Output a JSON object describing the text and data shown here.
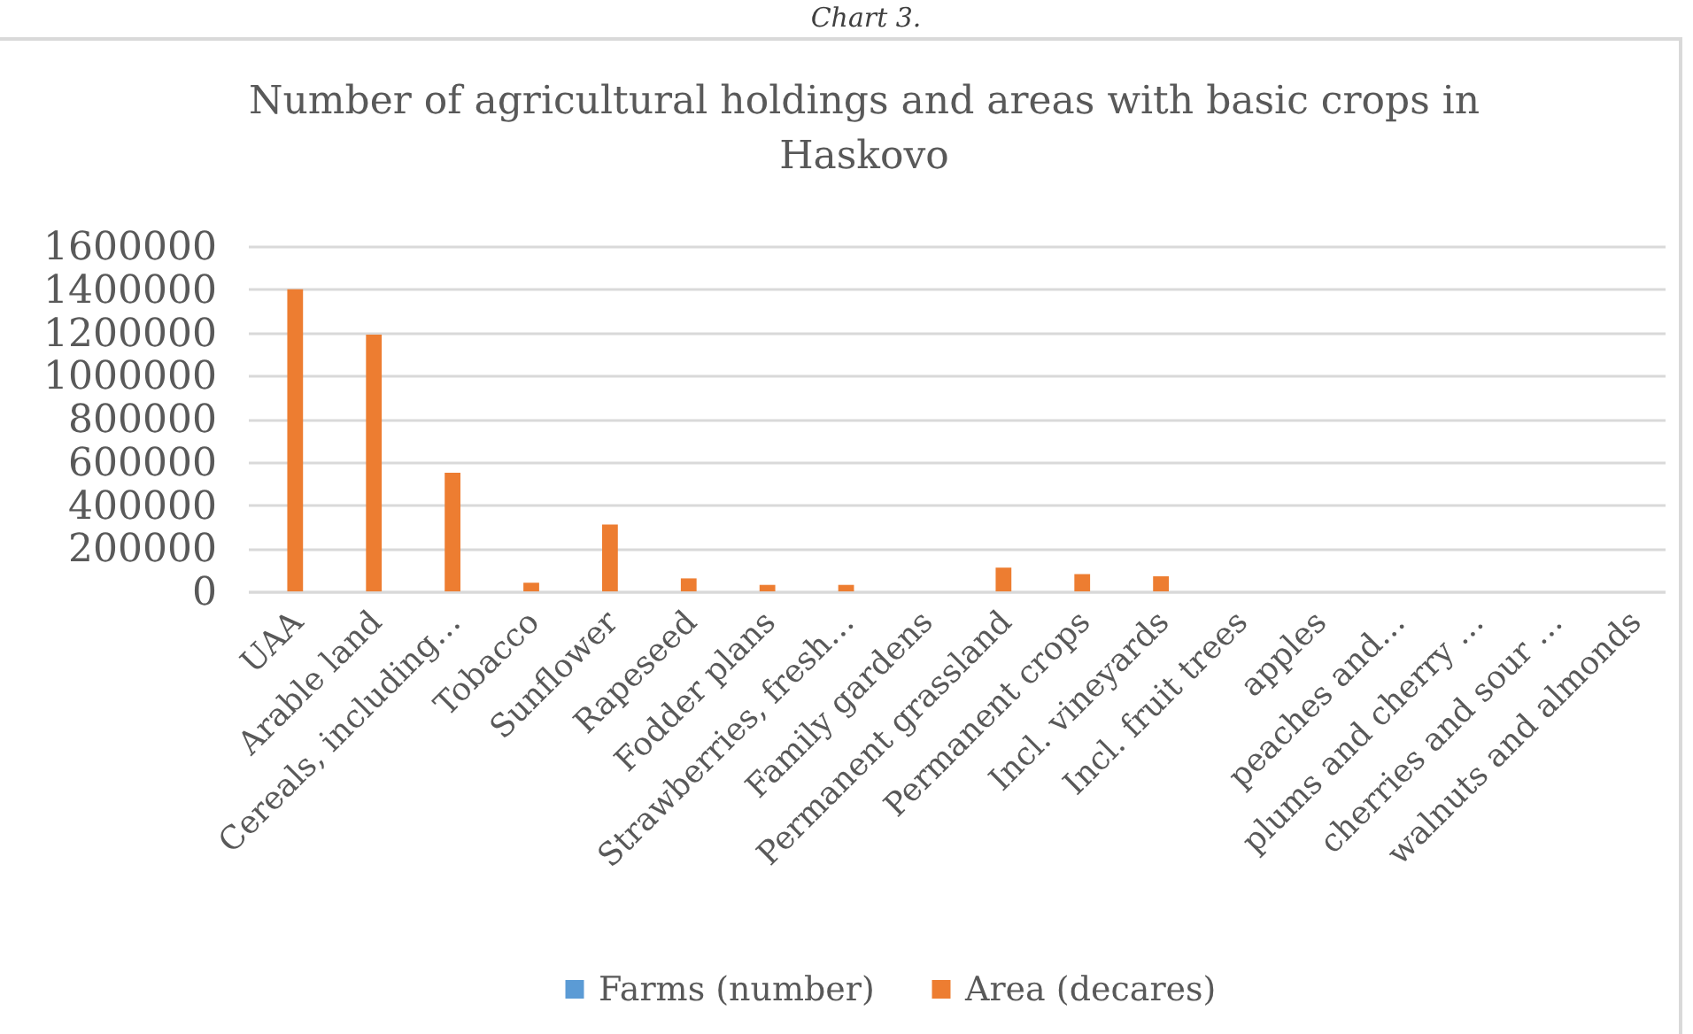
{
  "chart_data": {
    "type": "bar",
    "title": "Number of agricultural holdings and areas with basic crops in Haskovo",
    "annotations": [
      "Chart 3."
    ],
    "categories": [
      "UAA",
      "Arable land",
      "Cereals, including…",
      "Tobacco",
      "Sunflower",
      "Rapeseed",
      "Fodder plans",
      "Strawberries, fresh…",
      "Family gardens",
      "Permanent grassland",
      "Permanent crops",
      "Incl. vineyards",
      "Incl. fruit trees",
      "apples",
      "peaches and…",
      "plums and cherry …",
      "cherries and sour …",
      "walnuts and almonds"
    ],
    "series": [
      {
        "name": "Farms (number)",
        "color": "#5b9bd5",
        "values": [
          null,
          null,
          null,
          null,
          null,
          null,
          null,
          null,
          null,
          null,
          null,
          null,
          null,
          null,
          null,
          null,
          null,
          null
        ]
      },
      {
        "name": "Area (decares)",
        "color": "#ed7d31",
        "values": [
          1400000,
          1190000,
          550000,
          40000,
          310000,
          60000,
          30000,
          30000,
          null,
          110000,
          80000,
          70000,
          null,
          null,
          null,
          null,
          null,
          null
        ]
      }
    ],
    "ylim": [
      0,
      1600000
    ],
    "yticks": [
      0,
      200000,
      400000,
      600000,
      800000,
      1000000,
      1200000,
      1400000,
      1600000
    ],
    "grid": "y",
    "legend": "bottom"
  }
}
